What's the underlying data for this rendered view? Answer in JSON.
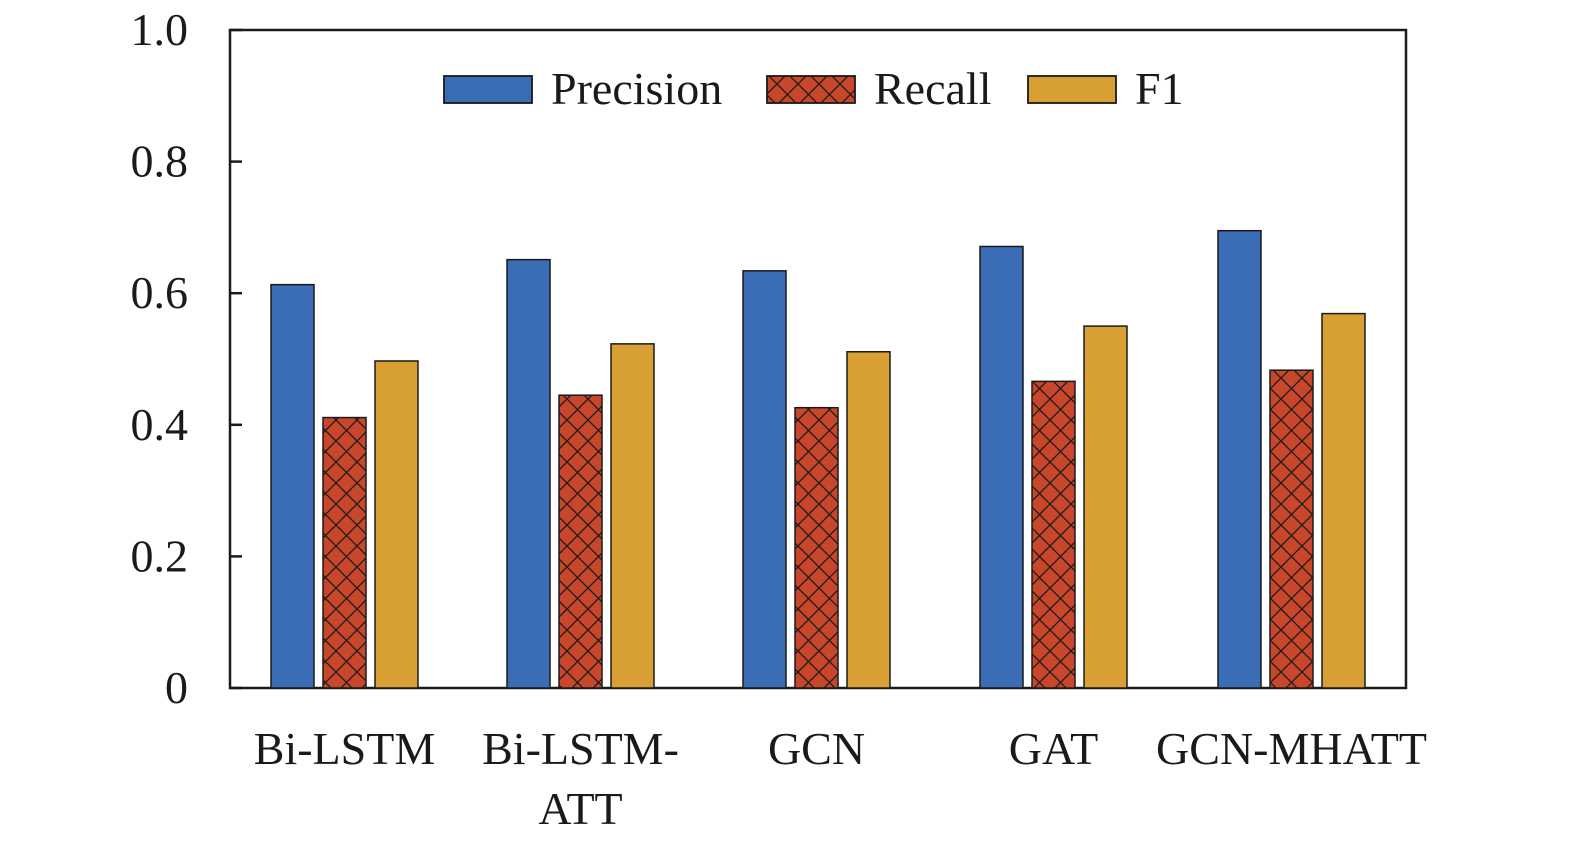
{
  "chart_data": {
    "type": "bar",
    "categories": [
      [
        "Bi-LSTM"
      ],
      [
        "Bi-LSTM-",
        "ATT"
      ],
      [
        "GCN"
      ],
      [
        "GAT"
      ],
      [
        "GCN-MHATT"
      ]
    ],
    "series": [
      {
        "name": "Precision",
        "values": [
          0.613,
          0.651,
          0.634,
          0.671,
          0.695
        ],
        "color": "#3a6db5",
        "pattern": "solid"
      },
      {
        "name": "Recall",
        "values": [
          0.411,
          0.445,
          0.426,
          0.466,
          0.483
        ],
        "color": "#c8472a",
        "pattern": "crosshatch"
      },
      {
        "name": "F1",
        "values": [
          0.497,
          0.523,
          0.511,
          0.55,
          0.569
        ],
        "color": "#d8a034",
        "pattern": "solid"
      }
    ],
    "ylim": [
      0,
      1.0
    ],
    "yticks": [
      0,
      0.2,
      0.4,
      0.6,
      0.8,
      1.0
    ],
    "ytick_labels": [
      "0",
      "0.2",
      "0.4",
      "0.6",
      "0.8",
      "1.0"
    ],
    "legend_position": "top-center",
    "grid": false
  }
}
